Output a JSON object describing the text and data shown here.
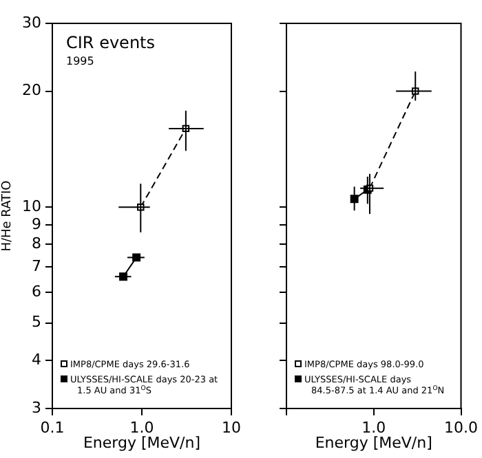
{
  "chart_data": [
    {
      "type": "line",
      "title": "CIR events",
      "subtitle": "1995",
      "xlabel": "Energy [MeV/n]",
      "ylabel": "H/He RATIO",
      "log": "xy",
      "xlim": [
        0.1,
        10
      ],
      "ylim": [
        3,
        30
      ],
      "xticks": [
        {
          "value": 0.1,
          "label": "0.1"
        },
        {
          "value": 1,
          "label": "1.0"
        },
        {
          "value": 10,
          "label": "10"
        }
      ],
      "yticks": [
        3,
        4,
        5,
        6,
        7,
        8,
        9,
        10,
        20,
        30
      ],
      "grid": false,
      "legend": "bottom left",
      "marker": "square",
      "series": [
        {
          "name": "IMP8/CPME days 29.6-31.6",
          "color": "#000000",
          "line_style": "dashed",
          "x": [
            0.97,
            3.1
          ],
          "values": [
            10,
            16
          ],
          "errors": [
            [
              8.6,
              11.5
            ],
            [
              14,
              17.8
            ]
          ],
          "xerrors": [
            [
              0.55,
              1.23
            ],
            [
              2,
              4.9
            ]
          ]
        },
        {
          "name": "ULYSSES/HI-SCALE days 20-23 at 1.5 AU and 31$^{O}$S",
          "color": "#000000",
          "line_style": "solid",
          "x": [
            0.62,
            0.87
          ],
          "values": [
            6.6,
            7.4
          ],
          "xerrors": [
            [
              0.5,
              0.76
            ],
            [
              0.69,
              1.07
            ]
          ]
        }
      ]
    },
    {
      "type": "line",
      "xlabel": "Energy [MeV/n]",
      "log": "xy",
      "xlim": [
        0.1,
        10
      ],
      "ylim": [
        3,
        30
      ],
      "xticks": [
        {
          "value": 0.1,
          "label": null
        },
        {
          "value": 1,
          "label": "1.0"
        },
        {
          "value": 10,
          "label": "10.0"
        }
      ],
      "yticks": [
        3,
        4,
        5,
        6,
        7,
        8,
        9,
        10,
        20,
        30
      ],
      "tick_labels": "x",
      "grid": false,
      "legend": "bottom left",
      "marker": "square",
      "series": [
        {
          "name": "IMP8/CPME days 98.0-99.0",
          "color": "#000000",
          "line_style": "dashed",
          "x": [
            0.9,
            3.0
          ],
          "values": [
            11.2,
            20
          ],
          "errors": [
            [
              9.6,
              12.2
            ],
            [
              18.9,
              22.5
            ]
          ],
          "xerrors": [
            [
              0.7,
              1.3
            ],
            [
              1.8,
              4.6
            ]
          ]
        },
        {
          "name": "ULYSSES/HI-SCALE days 84.5-87.5 at 1.4 AU and 21$^{O}$N",
          "color": "#000000",
          "line_style": "solid",
          "x": [
            0.6,
            0.85
          ],
          "values": [
            10.5,
            11.1
          ],
          "errors": [
            [
              9.8,
              11.3
            ],
            [
              10.2,
              12
            ]
          ]
        }
      ]
    }
  ]
}
